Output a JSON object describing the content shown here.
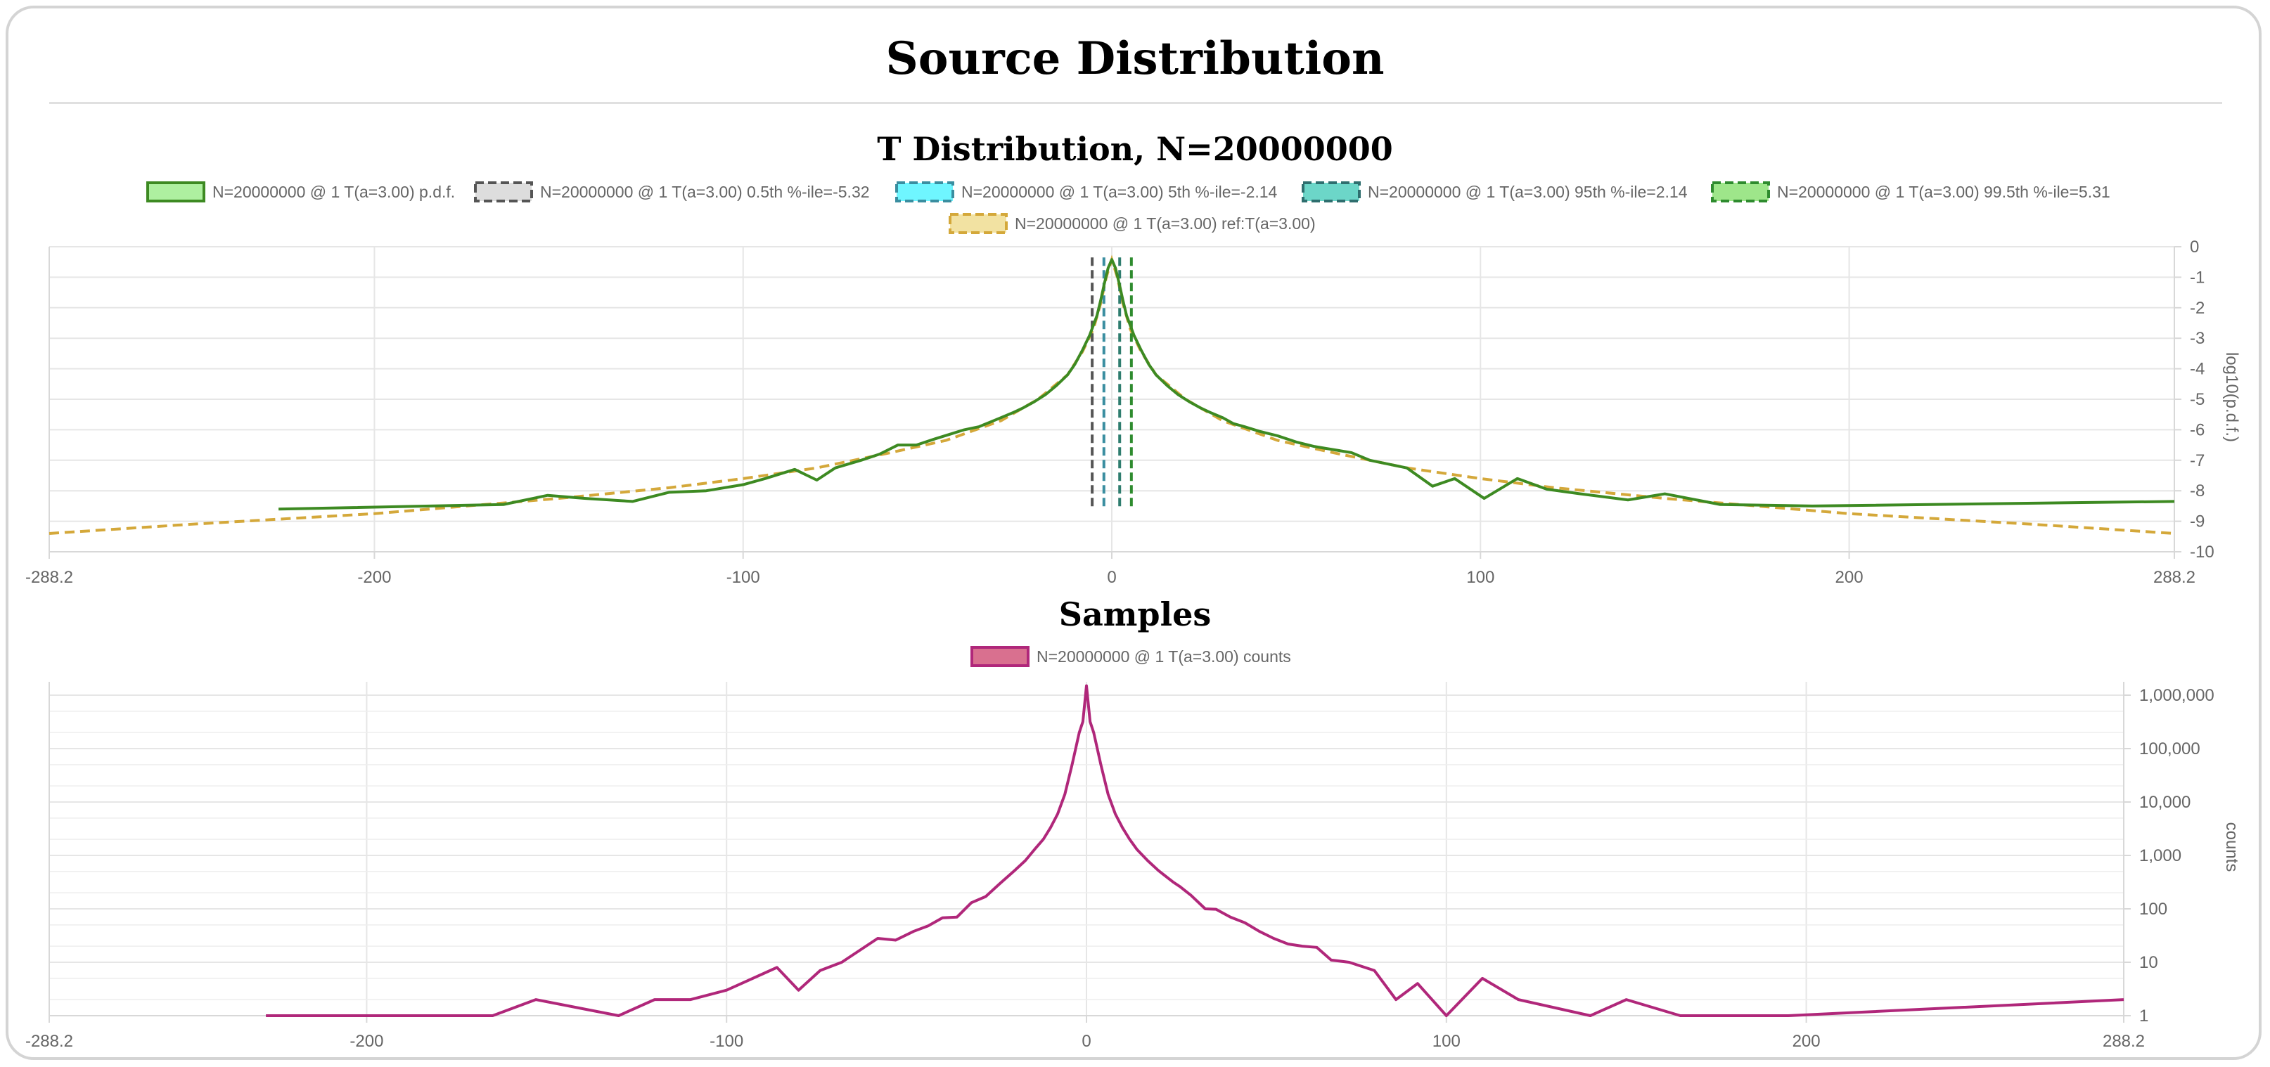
{
  "page": {
    "title": "Source Distribution"
  },
  "chart_data": [
    {
      "type": "line",
      "title": "T Distribution, N=20000000",
      "ylabel": "log10(p.d.f.)",
      "xlim": [
        -288.2,
        288.2
      ],
      "ylim": [
        -10,
        0
      ],
      "xticks": [
        -288.2,
        -200,
        -100,
        0,
        100,
        200,
        288.2
      ],
      "xtick_labels": [
        "-288.2",
        "-200",
        "-100",
        "0",
        "100",
        "200",
        "288.2"
      ],
      "yticks": [
        0,
        -1,
        -2,
        -3,
        -4,
        -5,
        -6,
        -7,
        -8,
        -9,
        -10
      ],
      "ytick_labels": [
        "0",
        "-1",
        "-2",
        "-3",
        "-4",
        "-5",
        "-6",
        "-7",
        "-8",
        "-9",
        "-10"
      ],
      "grid": true,
      "legend_position": "top",
      "colors": {
        "pdf": "#3d8a22",
        "ref": "#d4a83a",
        "p05": "#555555",
        "p5": "#3a8ea0",
        "p95": "#2e7d6e",
        "p995": "#2e8b2e"
      },
      "legend": [
        {
          "label": "N=20000000 @ 1 T(a=3.00) p.d.f.",
          "fill": "#aef0a0",
          "stroke": "#3d8a22",
          "dashed": false
        },
        {
          "label": "N=20000000 @ 1 T(a=3.00) 0.5th %-ile=-5.32",
          "fill": "#dddddd",
          "stroke": "#555555",
          "dashed": true
        },
        {
          "label": "N=20000000 @ 1 T(a=3.00) 5th %-ile=-2.14",
          "fill": "#6ff6ff",
          "stroke": "#3a8ea0",
          "dashed": true
        },
        {
          "label": "N=20000000 @ 1 T(a=3.00) 95th %-ile=2.14",
          "fill": "#6cd6c8",
          "stroke": "#2e6e6e",
          "dashed": true
        },
        {
          "label": "N=20000000 @ 1 T(a=3.00) 99.5th %-ile=5.31",
          "fill": "#9ee68a",
          "stroke": "#2e8b2e",
          "dashed": true
        },
        {
          "label": "N=20000000 @ 1 T(a=3.00) ref:T(a=3.00)",
          "fill": "#f2e2a2",
          "stroke": "#d4a83a",
          "dashed": true
        }
      ],
      "percentiles": [
        {
          "name": "0.5th %-ile",
          "x": -5.32
        },
        {
          "name": "5th %-ile",
          "x": -2.14
        },
        {
          "name": "95th %-ile",
          "x": 2.14
        },
        {
          "name": "99.5th %-ile",
          "x": 5.31
        }
      ],
      "series": [
        {
          "name": "N=20000000 @ 1 T(a=3.00) p.d.f.",
          "points": [
            [
              -226,
              -8.6
            ],
            [
              -165,
              -8.45
            ],
            [
              -153,
              -8.15
            ],
            [
              -143,
              -8.25
            ],
            [
              -130,
              -8.35
            ],
            [
              -120,
              -8.05
            ],
            [
              -110,
              -8.0
            ],
            [
              -100,
              -7.8
            ],
            [
              -94,
              -7.6
            ],
            [
              -86,
              -7.3
            ],
            [
              -80,
              -7.65
            ],
            [
              -75,
              -7.25
            ],
            [
              -68,
              -7.0
            ],
            [
              -63,
              -6.8
            ],
            [
              -58,
              -6.5
            ],
            [
              -53,
              -6.5
            ],
            [
              -48,
              -6.3
            ],
            [
              -44,
              -6.15
            ],
            [
              -40,
              -6.0
            ],
            [
              -36,
              -5.9
            ],
            [
              -33,
              -5.75
            ],
            [
              -30,
              -5.6
            ],
            [
              -27,
              -5.45
            ],
            [
              -24,
              -5.28
            ],
            [
              -21,
              -5.08
            ],
            [
              -18,
              -4.85
            ],
            [
              -15,
              -4.55
            ],
            [
              -12,
              -4.2
            ],
            [
              -10,
              -3.85
            ],
            [
              -8,
              -3.4
            ],
            [
              -6,
              -2.9
            ],
            [
              -4,
              -2.25
            ],
            [
              -3,
              -1.75
            ],
            [
              -2,
              -1.2
            ],
            [
              -1,
              -0.7
            ],
            [
              0,
              -0.42
            ],
            [
              1,
              -0.7
            ],
            [
              2,
              -1.2
            ],
            [
              3,
              -1.75
            ],
            [
              4,
              -2.25
            ],
            [
              6,
              -2.9
            ],
            [
              8,
              -3.4
            ],
            [
              10,
              -3.85
            ],
            [
              12,
              -4.2
            ],
            [
              15,
              -4.55
            ],
            [
              18,
              -4.85
            ],
            [
              21,
              -5.08
            ],
            [
              24,
              -5.28
            ],
            [
              27,
              -5.45
            ],
            [
              30,
              -5.6
            ],
            [
              33,
              -5.8
            ],
            [
              36,
              -5.9
            ],
            [
              40,
              -6.05
            ],
            [
              45,
              -6.2
            ],
            [
              50,
              -6.4
            ],
            [
              55,
              -6.55
            ],
            [
              60,
              -6.65
            ],
            [
              65,
              -6.75
            ],
            [
              70,
              -7.0
            ],
            [
              80,
              -7.25
            ],
            [
              87,
              -7.85
            ],
            [
              93,
              -7.6
            ],
            [
              101,
              -8.25
            ],
            [
              110,
              -7.6
            ],
            [
              118,
              -7.95
            ],
            [
              127,
              -8.1
            ],
            [
              140,
              -8.3
            ],
            [
              150,
              -8.1
            ],
            [
              165,
              -8.45
            ],
            [
              190,
              -8.5
            ],
            [
              288.2,
              -8.35
            ]
          ]
        },
        {
          "name": "N=20000000 @ 1 T(a=3.00) ref:T(a=3.00)",
          "points": [
            [
              -288.2,
              -9.4
            ],
            [
              -250,
              -9.1
            ],
            [
              -200,
              -8.75
            ],
            [
              -150,
              -8.25
            ],
            [
              -120,
              -7.9
            ],
            [
              -100,
              -7.6
            ],
            [
              -80,
              -7.25
            ],
            [
              -60,
              -6.75
            ],
            [
              -45,
              -6.35
            ],
            [
              -30,
              -5.7
            ],
            [
              -20,
              -5.0
            ],
            [
              -12,
              -4.2
            ],
            [
              -8,
              -3.45
            ],
            [
              -5,
              -2.7
            ],
            [
              -3,
              -1.85
            ],
            [
              -1.5,
              -1.0
            ],
            [
              0,
              -0.42
            ],
            [
              1.5,
              -1.0
            ],
            [
              3,
              -1.85
            ],
            [
              5,
              -2.7
            ],
            [
              8,
              -3.45
            ],
            [
              12,
              -4.2
            ],
            [
              20,
              -5.0
            ],
            [
              30,
              -5.7
            ],
            [
              45,
              -6.35
            ],
            [
              60,
              -6.75
            ],
            [
              80,
              -7.25
            ],
            [
              100,
              -7.6
            ],
            [
              120,
              -7.9
            ],
            [
              150,
              -8.25
            ],
            [
              200,
              -8.75
            ],
            [
              250,
              -9.1
            ],
            [
              288.2,
              -9.4
            ]
          ]
        }
      ]
    },
    {
      "type": "line",
      "title": "Samples",
      "ylabel": "counts",
      "yscale": "log",
      "xlim": [
        -288.2,
        288.2
      ],
      "ylim": [
        1,
        1000000
      ],
      "xticks": [
        -288.2,
        -200,
        -100,
        0,
        100,
        200,
        288.2
      ],
      "xtick_labels": [
        "-288.2",
        "-200",
        "-100",
        "0",
        "100",
        "200",
        "288.2"
      ],
      "yticks": [
        1,
        10,
        100,
        1000,
        10000,
        100000,
        1000000
      ],
      "ytick_labels": [
        "1",
        "10",
        "100",
        "1,000",
        "10,000",
        "100,000",
        "1,000,000"
      ],
      "grid": true,
      "legend_position": "top",
      "colors": {
        "counts": "#b0277a"
      },
      "legend": [
        {
          "label": "N=20000000 @ 1 T(a=3.00) counts",
          "fill": "#d9708f",
          "stroke": "#b0277a",
          "dashed": false
        }
      ],
      "series": [
        {
          "name": "N=20000000 @ 1 T(a=3.00) counts",
          "points": [
            [
              -228,
              1
            ],
            [
              -165,
              1
            ],
            [
              -153,
              2
            ],
            [
              -130,
              1
            ],
            [
              -120,
              2
            ],
            [
              -110,
              2
            ],
            [
              -100,
              3
            ],
            [
              -86,
              8
            ],
            [
              -80,
              3
            ],
            [
              -74,
              7
            ],
            [
              -68,
              10
            ],
            [
              -58,
              28
            ],
            [
              -53,
              26
            ],
            [
              -48,
              38
            ],
            [
              -44,
              48
            ],
            [
              -40,
              68
            ],
            [
              -36,
              70
            ],
            [
              -32,
              130
            ],
            [
              -28,
              170
            ],
            [
              -24,
              300
            ],
            [
              -20,
              520
            ],
            [
              -17,
              800
            ],
            [
              -14,
              1400
            ],
            [
              -12,
              2000
            ],
            [
              -10,
              3300
            ],
            [
              -8,
              6000
            ],
            [
              -6,
              14000
            ],
            [
              -4,
              50000
            ],
            [
              -2,
              200000
            ],
            [
              -1,
              320000
            ],
            [
              0,
              1500000
            ],
            [
              1,
              320000
            ],
            [
              2,
              200000
            ],
            [
              4,
              50000
            ],
            [
              6,
              14000
            ],
            [
              8,
              6000
            ],
            [
              10,
              3300
            ],
            [
              12,
              2000
            ],
            [
              14,
              1300
            ],
            [
              17,
              800
            ],
            [
              20,
              520
            ],
            [
              24,
              320
            ],
            [
              26,
              260
            ],
            [
              29,
              180
            ],
            [
              33,
              100
            ],
            [
              36,
              98
            ],
            [
              40,
              70
            ],
            [
              44,
              55
            ],
            [
              48,
              38
            ],
            [
              52,
              28
            ],
            [
              56,
              22
            ],
            [
              60,
              20
            ],
            [
              64,
              19
            ],
            [
              68,
              11
            ],
            [
              73,
              10
            ],
            [
              80,
              7
            ],
            [
              86,
              2
            ],
            [
              92,
              4
            ],
            [
              100,
              1
            ],
            [
              110,
              5
            ],
            [
              120,
              2
            ],
            [
              140,
              1
            ],
            [
              150,
              2
            ],
            [
              165,
              1
            ],
            [
              195,
              1
            ],
            [
              288.2,
              2
            ]
          ]
        }
      ]
    }
  ]
}
